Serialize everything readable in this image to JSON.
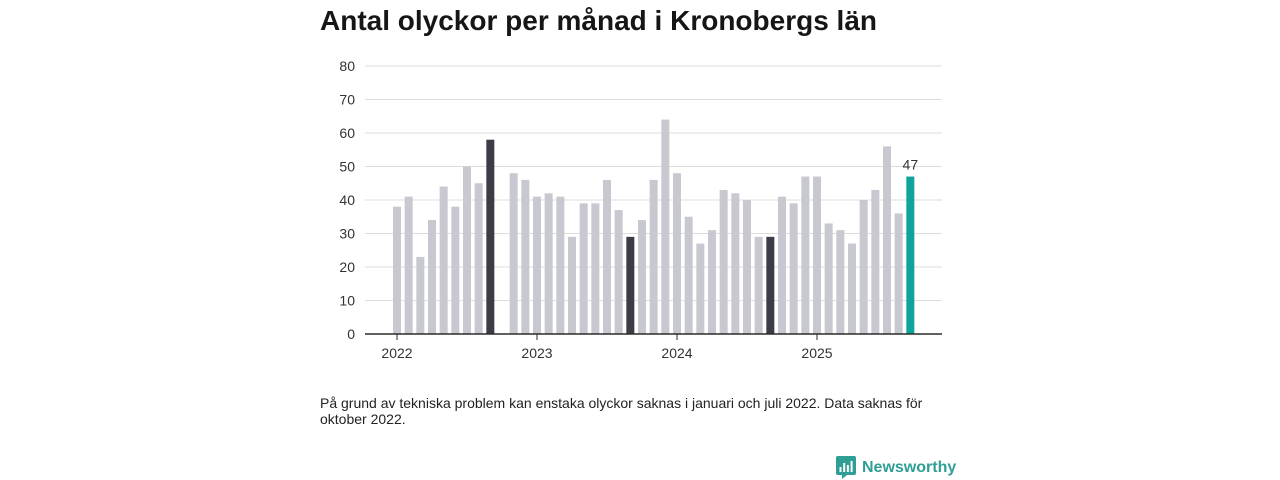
{
  "footnote": "På grund av tekniska problem kan enstaka olyckor saknas i januari och juli 2022. Data saknas för oktober 2022.",
  "brand": {
    "name": "Newsworthy",
    "icon": "bar-chart-speech-icon",
    "color": "#2f9e94"
  },
  "chart_data": {
    "type": "bar",
    "title": "Antal olyckor per månad i Kronobergs län",
    "xlabel": "",
    "ylabel": "",
    "ylim": [
      0,
      80
    ],
    "yticks": [
      0,
      10,
      20,
      30,
      40,
      50,
      60,
      70,
      80
    ],
    "x_tick_labels": [
      "2022",
      "2023",
      "2024",
      "2025"
    ],
    "start": {
      "year": 2022,
      "month": 1
    },
    "values": [
      38,
      41,
      23,
      34,
      44,
      38,
      50,
      45,
      58,
      null,
      48,
      46,
      41,
      42,
      41,
      29,
      39,
      39,
      46,
      37,
      29,
      34,
      46,
      64,
      48,
      35,
      27,
      31,
      43,
      42,
      40,
      29,
      29,
      41,
      39,
      47,
      47,
      33,
      31,
      27,
      40,
      43,
      56,
      36,
      47
    ],
    "highlight_month": 9,
    "latest_label": "47",
    "grid": true,
    "colors": {
      "default": "#c8c8d0",
      "highlight": "#3c3c47",
      "latest": "#10a39b",
      "grid": "#dcdcdc",
      "axis": "#2b2b2b"
    }
  }
}
